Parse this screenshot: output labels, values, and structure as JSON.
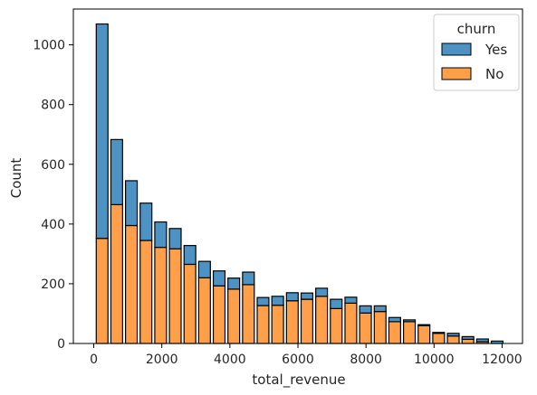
{
  "chart_data": {
    "type": "bar",
    "subtype": "stacked-histogram",
    "xlabel": "total_revenue",
    "ylabel": "Count",
    "xlim": [
      -600,
      12600
    ],
    "ylim": [
      0,
      1120
    ],
    "xticks": [
      0,
      2000,
      4000,
      6000,
      8000,
      10000,
      12000
    ],
    "yticks": [
      0,
      200,
      400,
      600,
      800,
      1000
    ],
    "bin_width": 430,
    "bar_width_fraction": 0.8,
    "grid": false,
    "legend": {
      "title": "churn",
      "placement": "top-right",
      "entries": [
        "Yes",
        "No"
      ]
    },
    "series": [
      {
        "name": "No",
        "color": "#ff9f4a",
        "edge_color": "#000000",
        "bin_centers": [
          245,
          675,
          1105,
          1535,
          1965,
          2395,
          2825,
          3255,
          3685,
          4115,
          4545,
          4975,
          5405,
          5835,
          6265,
          6695,
          7125,
          7555,
          7985,
          8415,
          8845,
          9275,
          9705,
          10135,
          10565,
          10995,
          11425,
          11855
        ],
        "values": [
          352,
          465,
          395,
          345,
          322,
          317,
          265,
          220,
          193,
          182,
          197,
          127,
          128,
          143,
          148,
          158,
          117,
          135,
          102,
          107,
          73,
          73,
          60,
          34,
          25,
          14,
          6,
          0
        ]
      },
      {
        "name": "Yes",
        "color": "#4c92c3",
        "edge_color": "#000000",
        "bin_centers": [
          245,
          675,
          1105,
          1535,
          1965,
          2395,
          2825,
          3255,
          3685,
          4115,
          4545,
          4975,
          5405,
          5835,
          6265,
          6695,
          7125,
          7555,
          7985,
          8415,
          8845,
          9275,
          9705,
          10135,
          10565,
          10995,
          11425,
          11855
        ],
        "values": [
          718,
          218,
          150,
          125,
          85,
          68,
          63,
          55,
          50,
          37,
          42,
          27,
          30,
          27,
          21,
          27,
          31,
          20,
          24,
          19,
          14,
          6,
          3,
          3,
          9,
          9,
          9,
          8
        ]
      }
    ]
  }
}
